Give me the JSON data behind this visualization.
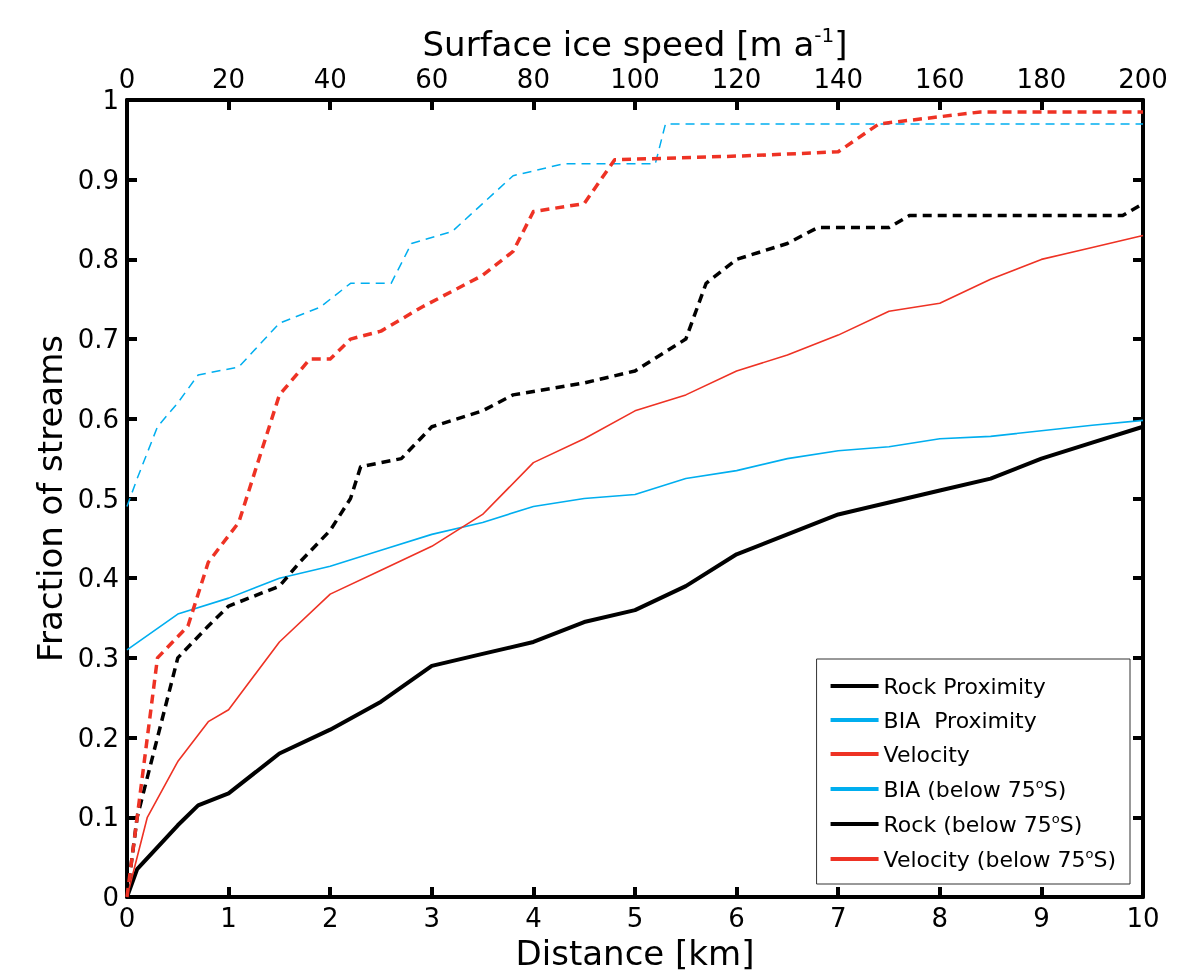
{
  "chart_data": {
    "type": "line",
    "xlabel": "Distance [km]",
    "ylabel": "Fraction of streams",
    "x2label": "Surface ice speed [m a$^{-1}$]",
    "xlim": [
      0,
      10
    ],
    "xticks": [
      0,
      1,
      2,
      3,
      4,
      5,
      6,
      7,
      8,
      9,
      10
    ],
    "x2lim": [
      0,
      200
    ],
    "x2ticks": [
      0,
      20,
      40,
      60,
      80,
      100,
      120,
      140,
      160,
      180,
      200
    ],
    "ylim": [
      0,
      1
    ],
    "yticks": [
      0,
      0.1,
      0.2,
      0.3,
      0.4,
      0.5,
      0.6,
      0.7,
      0.8,
      0.9,
      1
    ],
    "grid": false,
    "legend": "bottom right",
    "marker": "none",
    "series": [
      {
        "name": "Rock Proximity",
        "color": "#000000",
        "line_style": "solid",
        "x": [
          0,
          0.1,
          0.5,
          0.7,
          1,
          1.5,
          2,
          2.5,
          3,
          3.5,
          4,
          4.5,
          5,
          5.5,
          6,
          6.5,
          7,
          7.5,
          8,
          8.5,
          9,
          9.5,
          10
        ],
        "values": [
          0,
          0.035,
          0.09,
          0.115,
          0.13,
          0.18,
          0.21,
          0.245,
          0.29,
          0.305,
          0.32,
          0.345,
          0.36,
          0.39,
          0.43,
          0.455,
          0.48,
          0.495,
          0.51,
          0.525,
          0.55,
          0.57,
          0.59
        ]
      },
      {
        "name": "BIA  Proximity",
        "color": "#00aeef",
        "line_style": "solid",
        "x": [
          0,
          0.5,
          1,
          1.5,
          2,
          2.5,
          3,
          3.5,
          4,
          4.5,
          5,
          5.5,
          6,
          6.5,
          7,
          7.5,
          8,
          8.5,
          9,
          9.5,
          10
        ],
        "values": [
          0.31,
          0.355,
          0.375,
          0.4,
          0.415,
          0.435,
          0.455,
          0.47,
          0.49,
          0.5,
          0.505,
          0.525,
          0.535,
          0.55,
          0.56,
          0.565,
          0.575,
          0.578,
          0.585,
          0.592,
          0.598
        ]
      },
      {
        "name": "Velocity",
        "color": "#ee3224",
        "line_style": "solid",
        "x": [
          0,
          0.2,
          0.5,
          0.8,
          1,
          1.5,
          2,
          2.5,
          3,
          3.5,
          4,
          4.5,
          5,
          5.5,
          6,
          6.5,
          7,
          7.5,
          8,
          8.5,
          9,
          9.5,
          10
        ],
        "values": [
          0,
          0.1,
          0.17,
          0.22,
          0.235,
          0.32,
          0.38,
          0.41,
          0.44,
          0.48,
          0.545,
          0.575,
          0.61,
          0.63,
          0.66,
          0.68,
          0.705,
          0.735,
          0.745,
          0.775,
          0.8,
          0.815,
          0.83
        ]
      },
      {
        "name": "BIA (below 75$^{o}$S)",
        "color": "#00aeef",
        "line_style": "dashed",
        "x": [
          0,
          0.1,
          0.3,
          0.5,
          0.7,
          1.1,
          1.5,
          1.9,
          2.2,
          2.6,
          2.8,
          3.2,
          3.5,
          3.8,
          4.3,
          5.2,
          5.3,
          10
        ],
        "values": [
          0.49,
          0.525,
          0.59,
          0.62,
          0.655,
          0.665,
          0.72,
          0.74,
          0.77,
          0.77,
          0.82,
          0.835,
          0.87,
          0.905,
          0.92,
          0.92,
          0.97,
          0.97
        ]
      },
      {
        "name": "Rock (below 75$^{o}$S)",
        "color": "#000000",
        "line_style": "dashed",
        "x": [
          0,
          0.1,
          0.3,
          0.5,
          0.8,
          1,
          1.5,
          1.7,
          2,
          2.2,
          2.3,
          2.7,
          3,
          3.5,
          3.8,
          4.5,
          5,
          5.5,
          5.7,
          6,
          6.5,
          6.8,
          7.5,
          7.7,
          9.8,
          10
        ],
        "values": [
          0,
          0.1,
          0.2,
          0.3,
          0.34,
          0.365,
          0.39,
          0.42,
          0.46,
          0.5,
          0.54,
          0.55,
          0.59,
          0.61,
          0.63,
          0.645,
          0.66,
          0.7,
          0.77,
          0.8,
          0.82,
          0.84,
          0.84,
          0.855,
          0.855,
          0.87
        ]
      },
      {
        "name": "Velocity (below 75$^{o}$S)",
        "color": "#ee3224",
        "line_style": "dashed",
        "x": [
          0,
          0.1,
          0.2,
          0.3,
          0.6,
          0.8,
          1.1,
          1.5,
          1.8,
          2,
          2.2,
          2.5,
          2.9,
          3.5,
          3.8,
          4,
          4.5,
          4.8,
          6.1,
          7,
          7.4,
          8.4,
          10
        ],
        "values": [
          0,
          0.1,
          0.2,
          0.3,
          0.34,
          0.42,
          0.47,
          0.63,
          0.675,
          0.675,
          0.7,
          0.71,
          0.74,
          0.78,
          0.81,
          0.86,
          0.87,
          0.925,
          0.93,
          0.935,
          0.97,
          0.985,
          0.985
        ]
      }
    ]
  }
}
